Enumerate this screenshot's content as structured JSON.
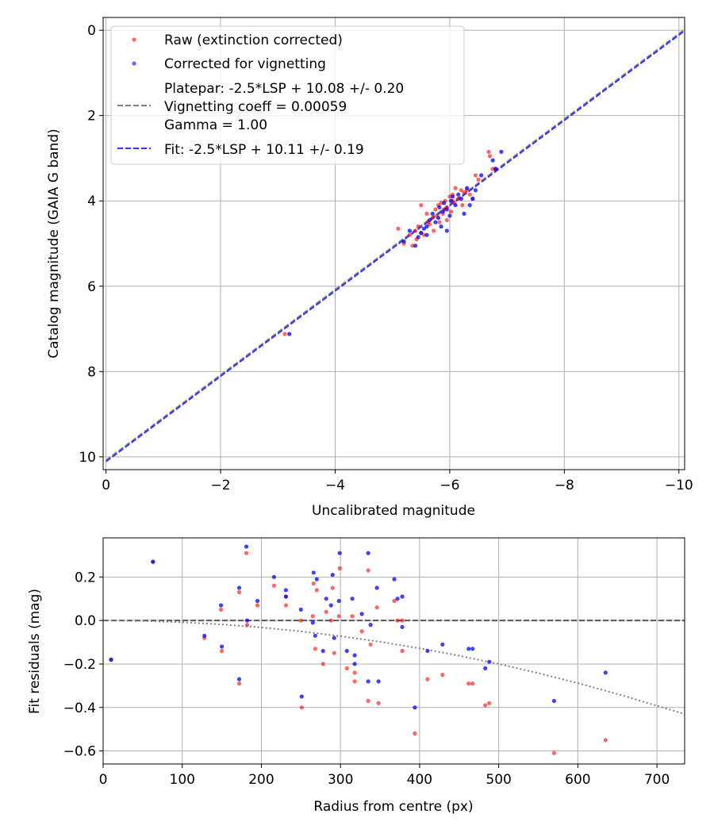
{
  "chart_data": [
    {
      "type": "scatter",
      "xlabel": "Uncalibrated magnitude",
      "ylabel": "Catalog magnitude (GAIA G band)",
      "xlim": [
        0.05,
        -10.1
      ],
      "ylim": [
        10.3,
        -0.3
      ],
      "x_inverted": true,
      "y_inverted": true,
      "xticks": [
        0,
        -2,
        -4,
        -6,
        -8,
        -10
      ],
      "xtick_labels": [
        "0",
        "−2",
        "−4",
        "−6",
        "−8",
        "−10"
      ],
      "yticks": [
        0,
        2,
        4,
        6,
        8,
        10
      ],
      "ytick_labels": [
        "0",
        "2",
        "4",
        "6",
        "8",
        "10"
      ],
      "grid": true,
      "legend_position": "upper-left",
      "legend": {
        "raw": "Raw (extinction corrected)",
        "corrected": "Corrected for vignetting",
        "platepar_line1": "Platepar: -2.5*LSP + 10.08 +/- 0.20",
        "platepar_line2": "Vignetting coeff = 0.00059",
        "platepar_line3": "Gamma = 1.00",
        "fit": "Fit: -2.5*LSP + 10.11 +/- 0.19"
      },
      "colors": {
        "raw": "#ff0000",
        "corrected": "#0000ff",
        "platepar": "#808080",
        "fit": "#3333ff"
      },
      "lines": [
        {
          "name": "platepar",
          "points": [
            [
              0,
              10.08
            ],
            [
              -10.1,
              -0.02
            ]
          ],
          "style": "dashed",
          "color": "#808080"
        },
        {
          "name": "fit",
          "points": [
            [
              0,
              10.11
            ],
            [
              -10.1,
              0.01
            ]
          ],
          "style": "dashed",
          "color": "#3333ff"
        }
      ],
      "series": [
        {
          "name": "Raw (extinction corrected)",
          "color": "#ff0000",
          "points": [
            [
              -3.12,
              7.12
            ],
            [
              -5.1,
              4.65
            ],
            [
              -5.2,
              5.0
            ],
            [
              -5.3,
              4.8
            ],
            [
              -5.35,
              5.05
            ],
            [
              -5.4,
              4.7
            ],
            [
              -5.42,
              4.9
            ],
            [
              -5.45,
              4.6
            ],
            [
              -5.5,
              4.1
            ],
            [
              -5.55,
              4.8
            ],
            [
              -5.6,
              4.3
            ],
            [
              -5.62,
              4.5
            ],
            [
              -5.65,
              4.55
            ],
            [
              -5.7,
              4.4
            ],
            [
              -5.72,
              4.7
            ],
            [
              -5.75,
              4.2
            ],
            [
              -5.78,
              4.35
            ],
            [
              -5.8,
              4.1
            ],
            [
              -5.82,
              4.5
            ],
            [
              -5.85,
              4.05
            ],
            [
              -5.88,
              4.3
            ],
            [
              -5.9,
              4.2
            ],
            [
              -5.92,
              4.0
            ],
            [
              -5.95,
              4.15
            ],
            [
              -6.0,
              3.9
            ],
            [
              -6.02,
              4.25
            ],
            [
              -6.05,
              3.85
            ],
            [
              -6.08,
              4.05
            ],
            [
              -6.1,
              3.7
            ],
            [
              -6.15,
              3.95
            ],
            [
              -6.2,
              3.75
            ],
            [
              -6.22,
              4.1
            ],
            [
              -6.25,
              3.8
            ],
            [
              -6.3,
              3.75
            ],
            [
              -6.35,
              3.85
            ],
            [
              -6.4,
              3.95
            ],
            [
              -6.45,
              3.4
            ],
            [
              -6.5,
              3.5
            ],
            [
              -6.68,
              2.85
            ],
            [
              -6.7,
              2.95
            ],
            [
              -6.75,
              3.25
            ],
            [
              -6.8,
              3.25
            ],
            [
              -5.5,
              4.75
            ],
            [
              -5.95,
              4.45
            ],
            [
              -6.05,
              4.0
            ]
          ]
        },
        {
          "name": "Corrected for vignetting",
          "color": "#0000ff",
          "points": [
            [
              -3.2,
              7.12
            ],
            [
              -5.2,
              4.95
            ],
            [
              -5.3,
              4.7
            ],
            [
              -5.4,
              5.05
            ],
            [
              -5.45,
              4.85
            ],
            [
              -5.5,
              4.75
            ],
            [
              -5.55,
              4.65
            ],
            [
              -5.6,
              4.6
            ],
            [
              -5.65,
              4.45
            ],
            [
              -5.7,
              4.3
            ],
            [
              -5.75,
              4.5
            ],
            [
              -5.8,
              4.4
            ],
            [
              -5.82,
              4.15
            ],
            [
              -5.85,
              4.6
            ],
            [
              -5.88,
              4.25
            ],
            [
              -5.9,
              4.05
            ],
            [
              -5.95,
              4.2
            ],
            [
              -6.0,
              4.35
            ],
            [
              -6.02,
              4.0
            ],
            [
              -6.05,
              3.9
            ],
            [
              -6.1,
              4.1
            ],
            [
              -6.15,
              3.85
            ],
            [
              -6.2,
              3.95
            ],
            [
              -6.25,
              4.3
            ],
            [
              -6.3,
              3.7
            ],
            [
              -6.35,
              4.1
            ],
            [
              -6.4,
              3.95
            ],
            [
              -6.45,
              3.75
            ],
            [
              -6.55,
              3.4
            ],
            [
              -6.75,
              3.05
            ],
            [
              -6.8,
              3.25
            ],
            [
              -6.9,
              2.85
            ],
            [
              -5.6,
              4.8
            ],
            [
              -5.95,
              4.7
            ]
          ]
        }
      ]
    },
    {
      "type": "scatter",
      "xlabel": "Radius from centre (px)",
      "ylabel": "Fit residuals (mag)",
      "xlim": [
        0,
        735
      ],
      "ylim": [
        -0.66,
        0.38
      ],
      "xticks": [
        0,
        100,
        200,
        300,
        400,
        500,
        600,
        700
      ],
      "xtick_labels": [
        "0",
        "100",
        "200",
        "300",
        "400",
        "500",
        "600",
        "700"
      ],
      "yticks": [
        -0.6,
        -0.4,
        -0.2,
        0.0,
        0.2
      ],
      "ytick_labels": [
        "−0.6",
        "−0.4",
        "−0.2",
        "0.0",
        "0.2"
      ],
      "grid": true,
      "colors": {
        "raw": "#ff0000",
        "corrected": "#0000ff",
        "zero": "#555555",
        "vignetting": "#808080"
      },
      "lines": [
        {
          "name": "zero-line",
          "style": "dashed",
          "color": "#555555",
          "points": [
            [
              0,
              0
            ],
            [
              735,
              0
            ]
          ]
        },
        {
          "name": "vignetting-curve",
          "style": "dotted",
          "color": "#808080",
          "points": [
            [
              0,
              0
            ],
            [
              50,
              -0.002
            ],
            [
              100,
              -0.008
            ],
            [
              150,
              -0.018
            ],
            [
              200,
              -0.032
            ],
            [
              250,
              -0.05
            ],
            [
              300,
              -0.072
            ],
            [
              350,
              -0.098
            ],
            [
              400,
              -0.128
            ],
            [
              450,
              -0.162
            ],
            [
              500,
              -0.2
            ],
            [
              550,
              -0.242
            ],
            [
              600,
              -0.288
            ],
            [
              650,
              -0.338
            ],
            [
              700,
              -0.392
            ],
            [
              735,
              -0.43
            ]
          ]
        }
      ],
      "series": [
        {
          "name": "Raw (extinction corrected)",
          "color": "#ff0000",
          "points": [
            [
              10,
              -0.18
            ],
            [
              63,
              0.27
            ],
            [
              128,
              -0.08
            ],
            [
              149,
              0.05
            ],
            [
              150,
              -0.14
            ],
            [
              172,
              0.13
            ],
            [
              172,
              -0.29
            ],
            [
              181,
              0.31
            ],
            [
              182,
              -0.02
            ],
            [
              195,
              0.07
            ],
            [
              216,
              0.16
            ],
            [
              231,
              0.07
            ],
            [
              231,
              0.11
            ],
            [
              250,
              0.0
            ],
            [
              251,
              -0.4
            ],
            [
              265,
              0.02
            ],
            [
              266,
              0.17
            ],
            [
              268,
              -0.13
            ],
            [
              270,
              0.14
            ],
            [
              278,
              -0.2
            ],
            [
              282,
              0.04
            ],
            [
              288,
              0.0
            ],
            [
              290,
              0.15
            ],
            [
              292,
              -0.15
            ],
            [
              298,
              0.02
            ],
            [
              299,
              0.24
            ],
            [
              308,
              -0.22
            ],
            [
              315,
              0.02
            ],
            [
              318,
              -0.24
            ],
            [
              318,
              -0.28
            ],
            [
              327,
              -0.05
            ],
            [
              335,
              -0.37
            ],
            [
              335,
              0.23
            ],
            [
              338,
              -0.11
            ],
            [
              346,
              0.06
            ],
            [
              348,
              -0.38
            ],
            [
              368,
              0.09
            ],
            [
              372,
              -0.0
            ],
            [
              378,
              -0.14
            ],
            [
              378,
              0.0
            ],
            [
              394,
              -0.52
            ],
            [
              410,
              -0.27
            ],
            [
              429,
              -0.25
            ],
            [
              462,
              -0.29
            ],
            [
              467,
              -0.29
            ],
            [
              483,
              -0.39
            ],
            [
              488,
              -0.38
            ],
            [
              570,
              -0.61
            ],
            [
              635,
              -0.55
            ]
          ]
        },
        {
          "name": "Corrected for vignetting",
          "color": "#0000ff",
          "points": [
            [
              10,
              -0.18
            ],
            [
              63,
              0.27
            ],
            [
              128,
              -0.07
            ],
            [
              149,
              0.07
            ],
            [
              150,
              -0.12
            ],
            [
              172,
              0.15
            ],
            [
              172,
              -0.27
            ],
            [
              181,
              0.34
            ],
            [
              182,
              0.0
            ],
            [
              195,
              0.09
            ],
            [
              216,
              0.2
            ],
            [
              231,
              0.14
            ],
            [
              231,
              0.11
            ],
            [
              250,
              0.05
            ],
            [
              251,
              -0.35
            ],
            [
              265,
              -0.01
            ],
            [
              266,
              0.22
            ],
            [
              268,
              -0.07
            ],
            [
              270,
              0.19
            ],
            [
              278,
              -0.14
            ],
            [
              282,
              0.1
            ],
            [
              288,
              0.07
            ],
            [
              290,
              0.21
            ],
            [
              292,
              -0.08
            ],
            [
              298,
              0.09
            ],
            [
              299,
              0.31
            ],
            [
              308,
              -0.14
            ],
            [
              315,
              0.1
            ],
            [
              318,
              -0.16
            ],
            [
              318,
              -0.2
            ],
            [
              327,
              0.03
            ],
            [
              335,
              -0.28
            ],
            [
              335,
              0.31
            ],
            [
              338,
              -0.02
            ],
            [
              346,
              0.15
            ],
            [
              348,
              -0.28
            ],
            [
              368,
              0.19
            ],
            [
              372,
              0.1
            ],
            [
              378,
              -0.03
            ],
            [
              378,
              0.11
            ],
            [
              394,
              -0.4
            ],
            [
              410,
              -0.14
            ],
            [
              429,
              -0.11
            ],
            [
              462,
              -0.13
            ],
            [
              467,
              -0.13
            ],
            [
              483,
              -0.22
            ],
            [
              488,
              -0.19
            ],
            [
              570,
              -0.37
            ],
            [
              635,
              -0.24
            ]
          ]
        }
      ]
    }
  ]
}
